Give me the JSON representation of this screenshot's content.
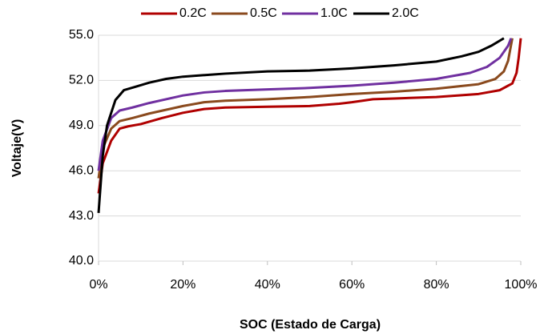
{
  "chart_data": {
    "type": "line",
    "xlabel": "SOC (Estado de Carga)",
    "ylabel": "Voltaje(V)",
    "xlim": [
      0,
      100
    ],
    "ylim": [
      40,
      55
    ],
    "xticks": [
      {
        "value": 0,
        "label": "0%"
      },
      {
        "value": 20,
        "label": "20%"
      },
      {
        "value": 40,
        "label": "40%"
      },
      {
        "value": 60,
        "label": "60%"
      },
      {
        "value": 80,
        "label": "80%"
      },
      {
        "value": 100,
        "label": "100%"
      }
    ],
    "yticks": [
      {
        "value": 40,
        "label": "40.0"
      },
      {
        "value": 43,
        "label": "43.0"
      },
      {
        "value": 46,
        "label": "46.0"
      },
      {
        "value": 49,
        "label": "49.0"
      },
      {
        "value": 52,
        "label": "52.0"
      },
      {
        "value": 55,
        "label": "55.0"
      }
    ],
    "grid": true,
    "legend": "top",
    "series": [
      {
        "name": "0.2C",
        "color": "#b00000",
        "x": [
          0,
          1,
          3,
          5,
          7,
          10,
          15,
          20,
          25,
          30,
          40,
          50,
          57,
          60,
          65,
          70,
          80,
          90,
          95,
          98,
          99,
          99.5,
          100
        ],
        "values": [
          44.5,
          46.5,
          48,
          48.8,
          48.95,
          49.1,
          49.5,
          49.85,
          50.1,
          50.2,
          50.25,
          50.3,
          50.45,
          50.55,
          50.75,
          50.8,
          50.9,
          51.1,
          51.35,
          51.8,
          52.5,
          53.5,
          54.8
        ]
      },
      {
        "name": "0.5C",
        "color": "#8a4a1e",
        "x": [
          0,
          1,
          3,
          5,
          8,
          12,
          20,
          25,
          30,
          40,
          50,
          60,
          70,
          80,
          90,
          94,
          96,
          97,
          98
        ],
        "values": [
          45.5,
          47.5,
          48.8,
          49.3,
          49.5,
          49.8,
          50.3,
          50.55,
          50.65,
          50.75,
          50.9,
          51.1,
          51.25,
          51.45,
          51.75,
          52.1,
          52.6,
          53.3,
          54.8
        ]
      },
      {
        "name": "1.0C",
        "color": "#7030a0",
        "x": [
          0,
          1,
          3,
          5,
          8,
          12,
          20,
          25,
          30,
          40,
          50,
          60,
          70,
          80,
          88,
          92,
          95,
          97,
          97.7
        ],
        "values": [
          46,
          48,
          49.5,
          50,
          50.2,
          50.5,
          51,
          51.2,
          51.3,
          51.4,
          51.5,
          51.65,
          51.85,
          52.1,
          52.5,
          52.9,
          53.5,
          54.3,
          54.8
        ]
      },
      {
        "name": "2.0C",
        "color": "#000000",
        "x": [
          0,
          1,
          2,
          4,
          6,
          9,
          12,
          16,
          20,
          30,
          40,
          50,
          60,
          70,
          80,
          86,
          90,
          93,
          96
        ],
        "values": [
          43.2,
          47,
          49,
          50.7,
          51.35,
          51.6,
          51.85,
          52.1,
          52.25,
          52.45,
          52.6,
          52.65,
          52.8,
          53,
          53.25,
          53.6,
          53.9,
          54.3,
          54.8
        ]
      }
    ]
  }
}
